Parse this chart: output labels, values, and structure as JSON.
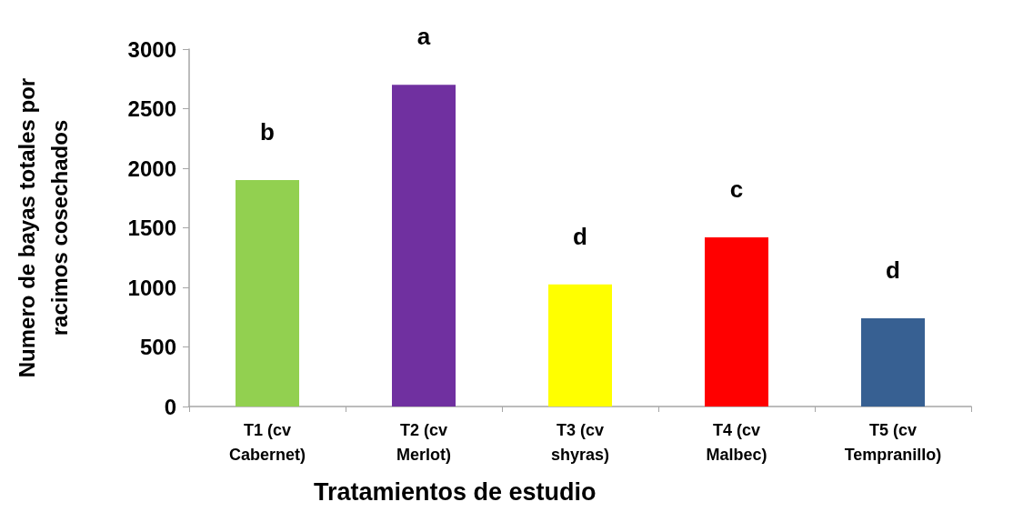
{
  "chart_data": {
    "type": "bar",
    "xlabel": "Tratamientos de estudio",
    "ylabel": "Numero de bayas totales por racimos cosechados",
    "categories": [
      "T1 (cv Cabernet)",
      "T2 (cv Merlot)",
      "T3 (cv shyras)",
      "T4 (cv Malbec)",
      "T5 (cv Tempranillo)"
    ],
    "values": [
      1900,
      2700,
      1025,
      1420,
      740
    ],
    "colors": [
      "#92d050",
      "#7030a0",
      "#ffff00",
      "#ff0000",
      "#376092"
    ],
    "ylim": [
      0,
      3000
    ],
    "yticks": [
      0,
      500,
      1000,
      1500,
      2000,
      2500,
      3000
    ],
    "annotations": [
      {
        "text": "b",
        "x": "T1 (cv Cabernet)",
        "y": 1900
      },
      {
        "text": "a",
        "x": "T2 (cv Merlot)",
        "y": 2700
      },
      {
        "text": "d",
        "x": "T3 (cv shyras)",
        "y": 1025
      },
      {
        "text": "c",
        "x": "T4 (cv Malbec)",
        "y": 1420
      },
      {
        "text": "d",
        "x": "T5 (cv Tempranillo)",
        "y": 740
      }
    ]
  }
}
